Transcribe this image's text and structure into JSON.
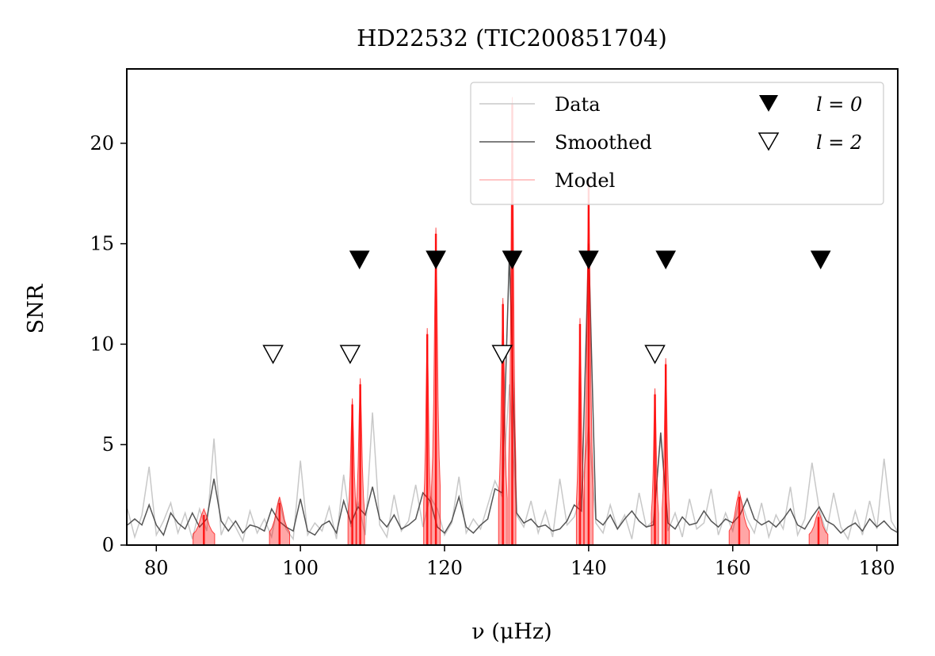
{
  "chart_data": {
    "type": "line",
    "title": "HD22532 (TIC200851704)",
    "xlabel": "ν (μHz)",
    "ylabel": "SNR",
    "xlim": [
      75.9,
      182.9
    ],
    "ylim": [
      0,
      23.7
    ],
    "xticks": [
      80,
      100,
      120,
      140,
      160,
      180
    ],
    "yticks": [
      0,
      5,
      10,
      15,
      20
    ],
    "legend": {
      "placement": "top-right",
      "entries": [
        {
          "name": "data",
          "label": "Data",
          "color": "#c8c8c8"
        },
        {
          "name": "smoothed",
          "label": "Smoothed",
          "color": "#555555"
        },
        {
          "name": "model",
          "label": "Model",
          "color": "#ffb3b3"
        },
        {
          "name": "l0",
          "label": "l = 0",
          "marker": "filled-triangle-down"
        },
        {
          "name": "l2",
          "label": "l = 2",
          "marker": "open-triangle-down"
        }
      ]
    },
    "mode_markers": {
      "l0": {
        "snr": 14.2,
        "x": [
          108.2,
          118.8,
          129.4,
          140.0,
          150.7,
          172.2
        ]
      },
      "l2": {
        "snr": 9.5,
        "x": [
          96.2,
          106.9,
          128.0,
          149.2
        ]
      }
    },
    "series": [
      {
        "name": "Data",
        "color": "#c8c8c8",
        "x": [
          76,
          77,
          78,
          79,
          80,
          81,
          82,
          83,
          84,
          85,
          86,
          87,
          88,
          89,
          90,
          91,
          92,
          93,
          94,
          95,
          96,
          97,
          98,
          99,
          100,
          101,
          102,
          103,
          104,
          105,
          106,
          107,
          108,
          109,
          110,
          111,
          112,
          113,
          114,
          115,
          116,
          117,
          118,
          119,
          120,
          121,
          122,
          123,
          124,
          125,
          126,
          127,
          128,
          129,
          130,
          131,
          132,
          133,
          134,
          135,
          136,
          137,
          138,
          139,
          140,
          141,
          142,
          143,
          144,
          145,
          146,
          147,
          148,
          149,
          150,
          151,
          152,
          153,
          154,
          155,
          156,
          157,
          158,
          159,
          160,
          161,
          162,
          163,
          164,
          165,
          166,
          167,
          168,
          169,
          170,
          171,
          172,
          173,
          174,
          175,
          176,
          177,
          178,
          179,
          180,
          181,
          182,
          183
        ],
        "values": [
          1.8,
          0.4,
          1.5,
          3.9,
          0.5,
          1.2,
          2.1,
          0.6,
          1.6,
          0.3,
          1.8,
          0.7,
          5.3,
          0.5,
          1.4,
          0.9,
          0.2,
          1.7,
          0.6,
          1.3,
          0.4,
          2.3,
          0.8,
          0.3,
          4.2,
          0.5,
          1.1,
          0.7,
          1.9,
          0.3,
          3.5,
          0.9,
          2.1,
          0.5,
          6.6,
          1.0,
          0.4,
          2.5,
          0.7,
          1.2,
          3.0,
          0.9,
          2.4,
          1.8,
          0.5,
          1.1,
          3.4,
          0.6,
          1.3,
          0.8,
          2.0,
          3.2,
          2.4,
          8.0,
          1.5,
          0.9,
          2.2,
          0.6,
          1.7,
          0.4,
          3.3,
          1.0,
          1.4,
          2.5,
          5.9,
          1.1,
          0.6,
          2.0,
          0.8,
          1.5,
          0.3,
          2.6,
          0.9,
          1.2,
          5.5,
          0.7,
          1.6,
          0.4,
          2.3,
          0.8,
          1.1,
          2.8,
          0.5,
          1.6,
          0.7,
          2.4,
          1.3,
          0.6,
          2.1,
          0.4,
          1.5,
          0.8,
          2.9,
          0.5,
          1.3,
          4.1,
          1.8,
          0.6,
          2.6,
          0.9,
          0.3,
          1.7,
          0.5,
          2.2,
          0.8,
          4.3,
          1.2,
          0.6
        ]
      },
      {
        "name": "Smoothed",
        "color": "#555555",
        "x": [
          76,
          77,
          78,
          79,
          80,
          81,
          82,
          83,
          84,
          85,
          86,
          87,
          88,
          89,
          90,
          91,
          92,
          93,
          94,
          95,
          96,
          97,
          98,
          99,
          100,
          101,
          102,
          103,
          104,
          105,
          106,
          107,
          108,
          109,
          110,
          111,
          112,
          113,
          114,
          115,
          116,
          117,
          118,
          119,
          120,
          121,
          122,
          123,
          124,
          125,
          126,
          127,
          128,
          129,
          130,
          131,
          132,
          133,
          134,
          135,
          136,
          137,
          138,
          139,
          140,
          141,
          142,
          143,
          144,
          145,
          146,
          147,
          148,
          149,
          150,
          151,
          152,
          153,
          154,
          155,
          156,
          157,
          158,
          159,
          160,
          161,
          162,
          163,
          164,
          165,
          166,
          167,
          168,
          169,
          170,
          171,
          172,
          173,
          174,
          175,
          176,
          177,
          178,
          179,
          180,
          181,
          182,
          183
        ],
        "values": [
          1.0,
          1.3,
          1.0,
          2.0,
          1.0,
          0.5,
          1.6,
          1.1,
          0.8,
          1.6,
          0.9,
          1.3,
          3.3,
          1.2,
          0.7,
          1.2,
          0.6,
          1.0,
          0.9,
          0.7,
          1.8,
          1.2,
          0.9,
          0.7,
          2.3,
          0.7,
          0.5,
          1.0,
          1.2,
          0.6,
          2.2,
          1.1,
          1.9,
          1.5,
          2.9,
          1.3,
          0.9,
          1.5,
          0.8,
          1.0,
          1.3,
          2.6,
          2.2,
          0.9,
          0.6,
          1.2,
          2.4,
          0.9,
          0.6,
          1.0,
          1.3,
          2.8,
          2.6,
          14.5,
          1.6,
          1.1,
          1.3,
          0.9,
          1.0,
          0.7,
          0.8,
          1.2,
          2.0,
          1.7,
          15.0,
          1.3,
          1.0,
          1.5,
          0.8,
          1.3,
          1.7,
          1.2,
          0.9,
          1.0,
          5.6,
          1.1,
          0.8,
          1.4,
          1.0,
          1.1,
          1.7,
          1.2,
          0.9,
          1.3,
          1.1,
          1.5,
          2.3,
          1.3,
          1.0,
          1.2,
          0.9,
          1.3,
          1.8,
          1.0,
          0.8,
          1.4,
          1.9,
          1.2,
          1.0,
          0.6,
          0.9,
          1.1,
          0.7,
          1.3,
          0.9,
          1.2,
          0.8,
          0.6
        ]
      },
      {
        "name": "Model",
        "color": "#ff0000",
        "segments": [
          {
            "center": 86.6,
            "halfwidth": 1.5,
            "height": 1.5
          },
          {
            "center": 97.1,
            "halfwidth": 1.4,
            "height": 2.1
          },
          {
            "center": 107.2,
            "halfwidth": 0.6,
            "height": 7.0
          },
          {
            "center": 108.3,
            "halfwidth": 0.6,
            "height": 8.0
          },
          {
            "center": 117.6,
            "halfwidth": 0.5,
            "height": 10.5
          },
          {
            "center": 118.8,
            "halfwidth": 0.6,
            "height": 15.5
          },
          {
            "center": 128.1,
            "halfwidth": 0.6,
            "height": 12.0
          },
          {
            "center": 129.4,
            "halfwidth": 0.5,
            "height": 22.0
          },
          {
            "center": 138.8,
            "halfwidth": 0.5,
            "height": 11.0
          },
          {
            "center": 140.0,
            "halfwidth": 0.6,
            "height": 18.0
          },
          {
            "center": 149.2,
            "halfwidth": 0.5,
            "height": 7.5
          },
          {
            "center": 150.7,
            "halfwidth": 0.5,
            "height": 9.0
          },
          {
            "center": 160.9,
            "halfwidth": 1.4,
            "height": 2.4
          },
          {
            "center": 171.9,
            "halfwidth": 1.3,
            "height": 1.4
          }
        ]
      }
    ]
  }
}
